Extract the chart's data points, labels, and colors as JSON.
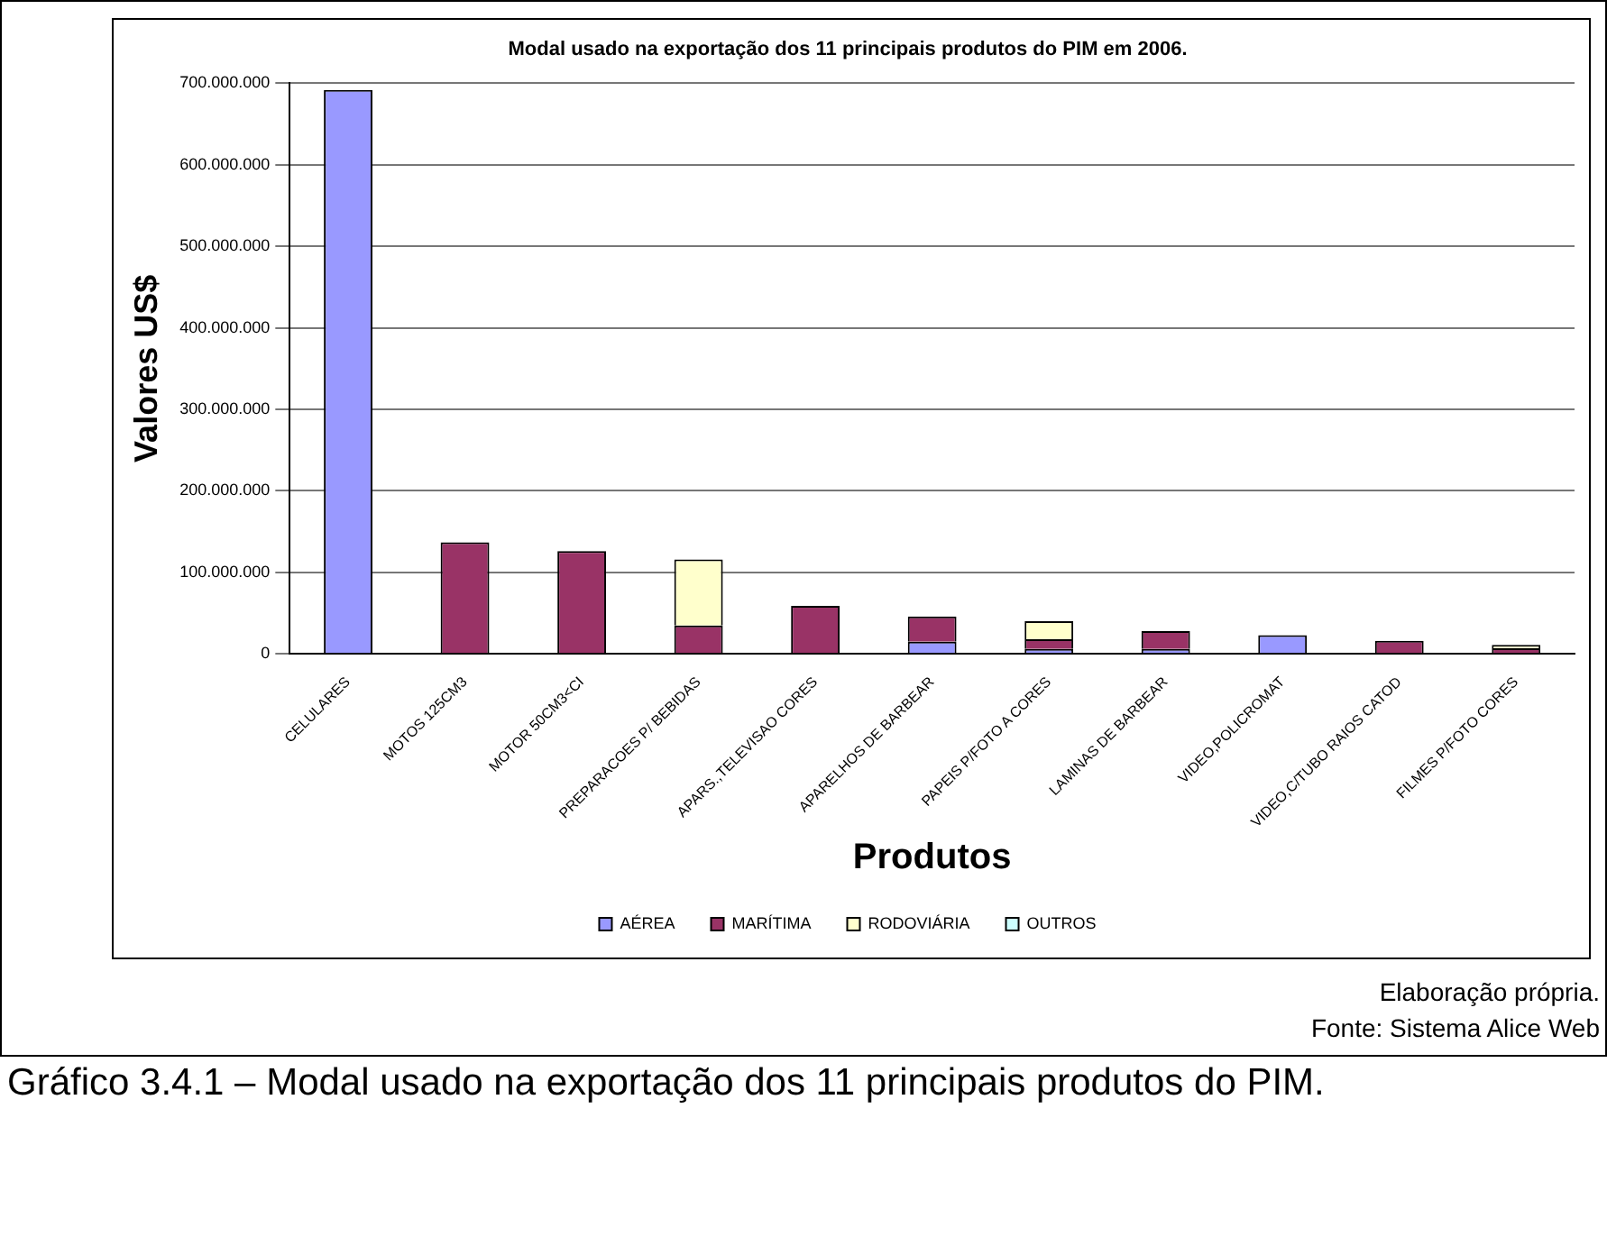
{
  "chart_data": {
    "type": "bar",
    "stacked": true,
    "title": "Modal usado na exportação dos 11 principais produtos do PIM em 2006.",
    "xlabel": "Produtos",
    "ylabel": "Valores US$",
    "categories": [
      "CELULARES",
      "MOTOS 125CM3",
      "MOTOR 50CM3<CI",
      "PREPARACOES P/ BEBIDAS",
      "APARS.,TELEVISAO CORES",
      "APARELHOS DE BARBEAR",
      "PAPEIS P/FOTO A CORES",
      "LAMINAS DE BARBEAR",
      "VIDEO,POLICROMAT",
      "VIDEO,C/TUBO RAIOS CATOD",
      "FILMES P/FOTO CORES"
    ],
    "series": [
      {
        "name": "AÉREA",
        "color": "#9999ff",
        "values": [
          692000000,
          0,
          null,
          null,
          null,
          15000000,
          6000000,
          6000000,
          23000000,
          0,
          0
        ]
      },
      {
        "name": "MARÍTIMA",
        "color": "#993366",
        "values": [
          0,
          137000000,
          126000000,
          35000000,
          59000000,
          31000000,
          12000000,
          22000000,
          0,
          16000000,
          7000000
        ]
      },
      {
        "name": "RODOVIÁRIA",
        "color": "#ffffcc",
        "values": [
          0,
          0,
          0,
          81000000,
          0,
          null,
          22000000,
          0,
          0,
          0,
          4000000
        ]
      },
      {
        "name": "OUTROS",
        "color": "#ccffff",
        "values": [
          0,
          0,
          0,
          0,
          0,
          0,
          0,
          0,
          0,
          0,
          0
        ]
      }
    ],
    "ylim": [
      0,
      700000000
    ],
    "yticks": [
      {
        "value": 0,
        "label": "0"
      },
      {
        "value": 100000000,
        "label": "100.000.000"
      },
      {
        "value": 200000000,
        "label": "200.000.000"
      },
      {
        "value": 300000000,
        "label": "300.000.000"
      },
      {
        "value": 400000000,
        "label": "400.000.000"
      },
      {
        "value": 500000000,
        "label": "500.000.000"
      },
      {
        "value": 600000000,
        "label": "600.000.000"
      },
      {
        "value": 700000000,
        "label": "700.000.000"
      }
    ],
    "grid": "y",
    "legend": "bottom",
    "annotations": [
      "Elaboração própria.",
      "Fonte: Sistema Alice Web",
      "Gráfico 3.4.1 – Modal usado na exportação dos 11 principais produtos do PIM."
    ]
  }
}
